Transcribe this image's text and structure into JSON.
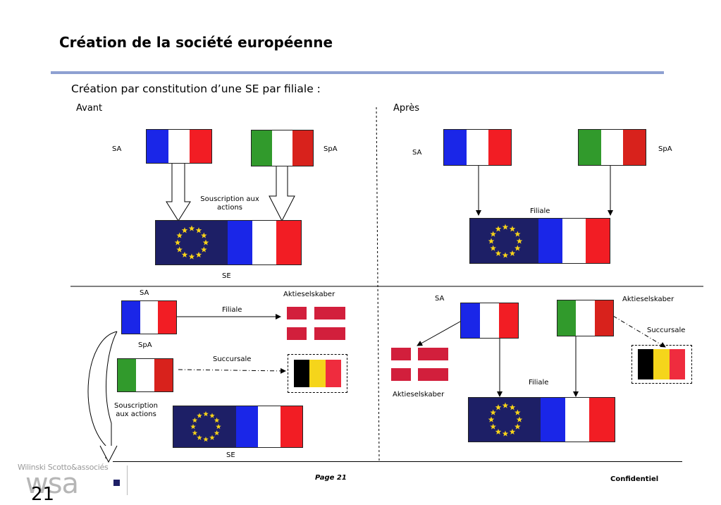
{
  "title": "Création de la société européenne",
  "subtitle": "Création par constitution d’une SE par filiale :",
  "top_left": {
    "heading": "Avant",
    "sa_label": "SA",
    "spa_label": "SpA",
    "arrow_label": "Souscription aux actions",
    "se_label": "SE"
  },
  "top_right": {
    "heading": "Après",
    "sa_label": "SA",
    "spa_label": "SpA",
    "filiale_label": "Filiale"
  },
  "bottom_left": {
    "sa_label": "SA",
    "aktie_label": "Aktieselskaber",
    "filiale_label": "Filiale",
    "spa_label": "SpA",
    "succursale_label": "Succursale",
    "souscription_label": "Souscription aux actions",
    "se_label": "SE"
  },
  "bottom_right": {
    "sa_label": "SA",
    "aktie_top_label": "Aktieselskaber",
    "succursale_label": "Succursale",
    "filiale_label": "Filiale",
    "aktie_bottom_label": "Aktieselskaber"
  },
  "footer": {
    "page": "Page 21",
    "confidential": "Confidentiel",
    "logo_small": "Wilinski Scotto&associés",
    "logo_big": "wsa",
    "slide_number": "21"
  },
  "colors": {
    "rule": "#8ea0d2",
    "france_blue": "#1a26e8",
    "france_red": "#f21d24",
    "italy_green": "#319a2c",
    "eu_blue": "#1d1f66",
    "eu_star": "#f6d21a"
  },
  "icons": [
    "france-flag",
    "italy-flag",
    "denmark-flag",
    "belgium-flag",
    "eu-flag"
  ]
}
